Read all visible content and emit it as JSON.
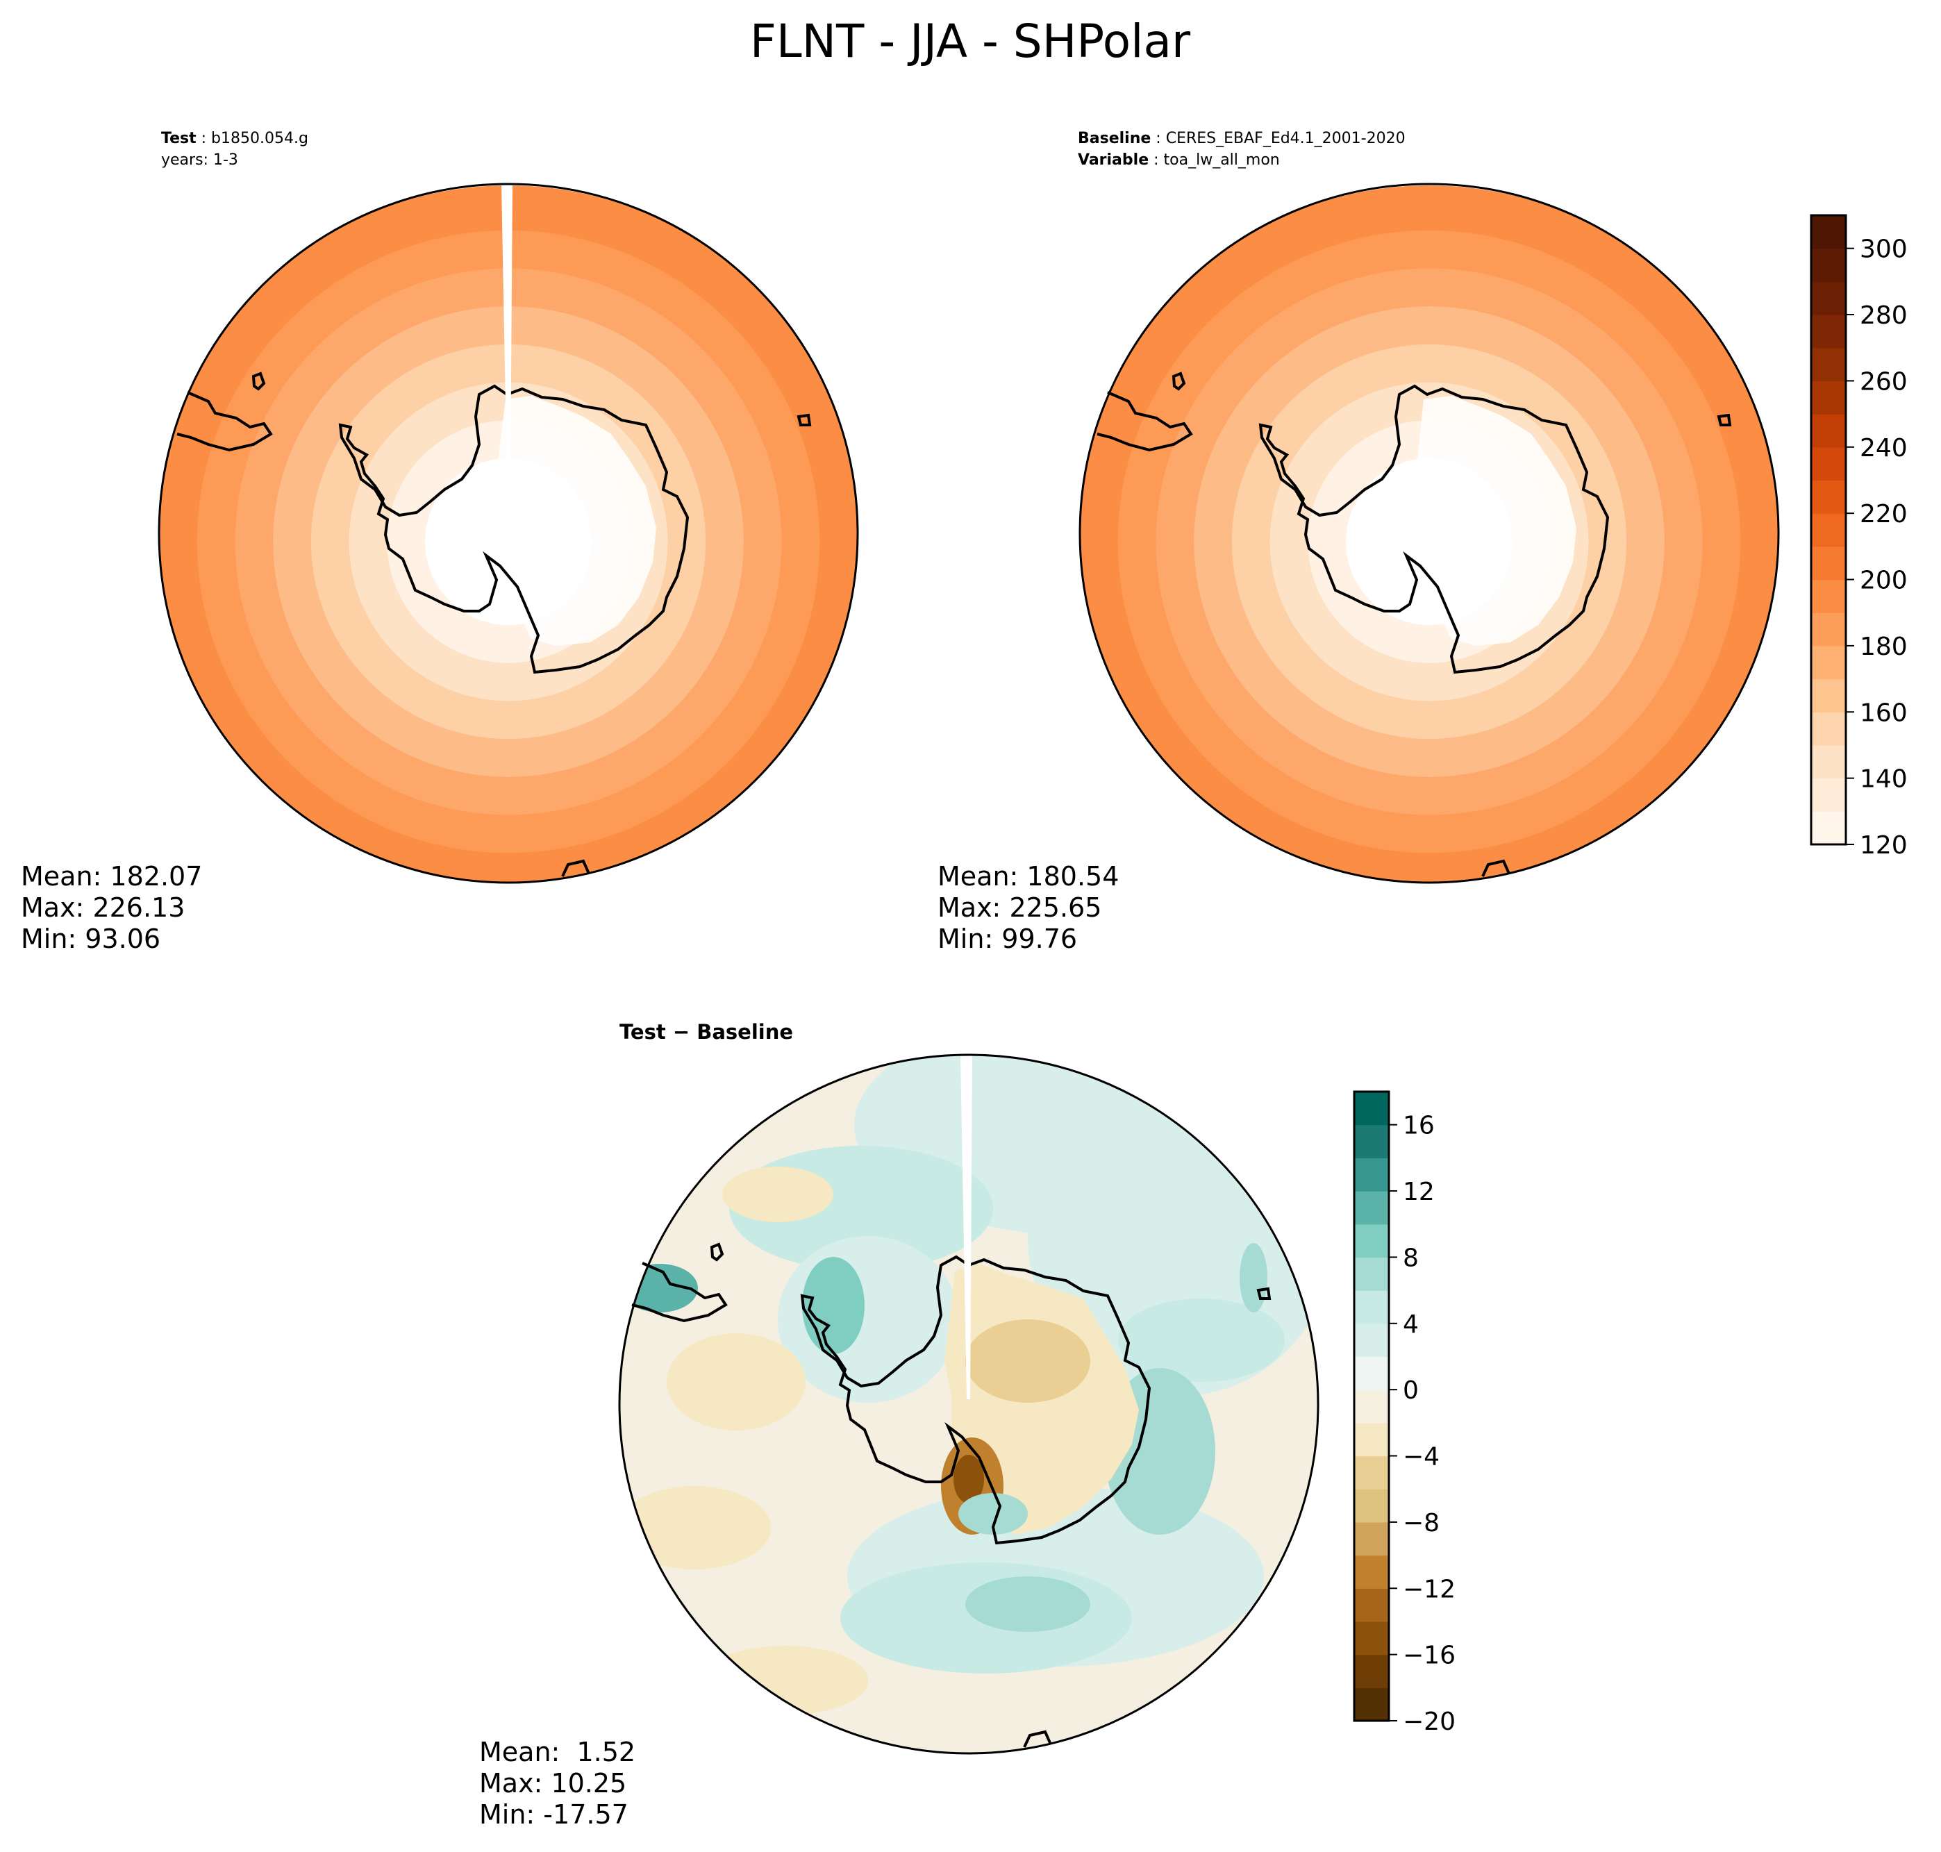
{
  "figure_title": "FLNT - JJA - SHPolar",
  "panels": {
    "test": {
      "label_key": "Test",
      "label_value": "b1850.054.g",
      "line2": "years: 1-3",
      "stats": {
        "mean": "Mean: 182.07",
        "max": "Max: 226.13",
        "min": "Min: 93.06"
      }
    },
    "baseline": {
      "label_key": "Baseline",
      "label_value": "CERES_EBAF_Ed4.1_2001-2020",
      "line2_key": "Variable",
      "line2_value": "toa_lw_all_mon",
      "stats": {
        "mean": "Mean: 180.54",
        "max": "Max: 225.65",
        "min": "Min: 99.76"
      }
    },
    "diff": {
      "title": "Test − Baseline",
      "stats": {
        "mean": "Mean:  1.52",
        "max": "Max: 10.25",
        "min": "Min: -17.57"
      }
    }
  },
  "chart_data": [
    {
      "type": "heatmap",
      "subtype": "polar-stereographic-contour",
      "panel": "test",
      "colormap": "Oranges",
      "color_range": [
        120,
        310
      ],
      "rings_from_pole": [
        {
          "level": 120,
          "color": "#ffffff"
        },
        {
          "level": 140,
          "color": "#fff1e3"
        },
        {
          "level": 160,
          "color": "#fee2c6"
        },
        {
          "level": 170,
          "color": "#fdd0a5"
        },
        {
          "level": 180,
          "color": "#fdbb87"
        },
        {
          "level": 190,
          "color": "#fda76b"
        },
        {
          "level": 200,
          "color": "#fd9a55"
        },
        {
          "level": 210,
          "color": "#fb8e44"
        }
      ],
      "mean": 182.07,
      "max": 226.13,
      "min": 93.06
    },
    {
      "type": "heatmap",
      "subtype": "polar-stereographic-contour",
      "panel": "baseline",
      "colormap": "Oranges",
      "color_range": [
        120,
        310
      ],
      "colorbar": {
        "ticks": [
          120,
          140,
          160,
          180,
          200,
          220,
          240,
          260,
          280,
          300
        ],
        "levels": [
          120,
          130,
          140,
          150,
          160,
          170,
          180,
          190,
          200,
          210,
          220,
          230,
          240,
          250,
          260,
          270,
          280,
          290,
          300,
          310
        ],
        "colors": [
          "#fff5eb",
          "#feecd9",
          "#fee2c6",
          "#fdd4ab",
          "#fdc48f",
          "#fdb274",
          "#fd9f5a",
          "#fb8c43",
          "#f67b31",
          "#ee6a21",
          "#e35914",
          "#d4490b",
          "#c13e04",
          "#a93703",
          "#923004",
          "#7f2704",
          "#6b2003",
          "#5c1b02",
          "#4d1702"
        ]
      },
      "rings_from_pole": [
        {
          "level": 120,
          "color": "#ffffff"
        },
        {
          "level": 140,
          "color": "#fff1e3"
        },
        {
          "level": 160,
          "color": "#fee2c6"
        },
        {
          "level": 170,
          "color": "#fdd0a5"
        },
        {
          "level": 180,
          "color": "#fdbb87"
        },
        {
          "level": 190,
          "color": "#fda76b"
        },
        {
          "level": 200,
          "color": "#fd9a55"
        },
        {
          "level": 210,
          "color": "#fb8e44"
        }
      ],
      "mean": 180.54,
      "max": 225.65,
      "min": 99.76
    },
    {
      "type": "heatmap",
      "subtype": "polar-stereographic-contour",
      "panel": "diff",
      "colormap": "BrBG",
      "color_range": [
        -20,
        18
      ],
      "colorbar": {
        "ticks": [
          -20,
          -16,
          -12,
          -8,
          -4,
          0,
          4,
          8,
          12,
          16
        ],
        "levels": [
          -20,
          -18,
          -16,
          -14,
          -12,
          -10,
          -8,
          -6,
          -4,
          -2,
          0,
          2,
          4,
          6,
          8,
          10,
          12,
          14,
          16,
          18
        ],
        "colors": [
          "#543005",
          "#6f3e07",
          "#8c510a",
          "#a6661a",
          "#bf812d",
          "#cfa35c",
          "#dfc27d",
          "#eacf95",
          "#f6e8c3",
          "#f5f0e0",
          "#eef5f3",
          "#d7eeea",
          "#c7eae5",
          "#a5dbd2",
          "#80cdc1",
          "#5ab2a8",
          "#35978f",
          "#1b7a73",
          "#01665e"
        ]
      },
      "background_color": "#f4efe0",
      "mean": 1.52,
      "max": 10.25,
      "min": -17.57
    }
  ],
  "colors": {
    "coastline": "#000000",
    "missing_wedge": "#ffffff"
  }
}
